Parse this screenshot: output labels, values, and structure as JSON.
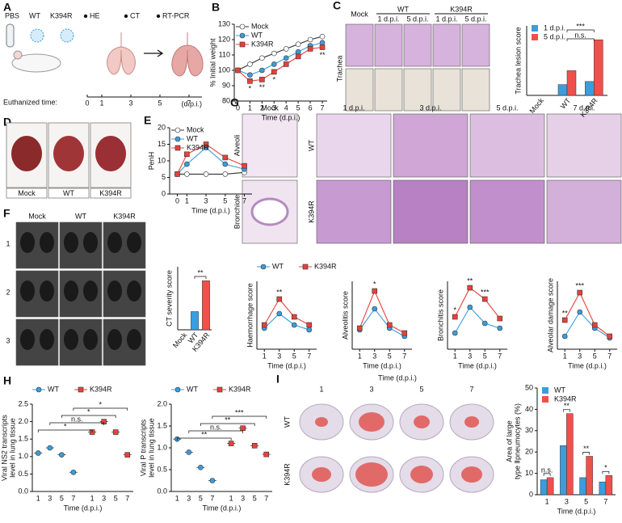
{
  "panel_labels": [
    "A",
    "B",
    "C",
    "D",
    "E",
    "F",
    "G",
    "H",
    "I"
  ],
  "panel_a": {
    "groups": [
      "PBS",
      "WT",
      "K394R"
    ],
    "assays": [
      "HE",
      "CT",
      "RT-PCR"
    ],
    "timeline_label": "Euthanized time:",
    "timeline": [
      0,
      1,
      3,
      5,
      7
    ],
    "timeline_unit": "(d.p.i.)"
  },
  "panel_c_images": {
    "columns": [
      "Mock",
      "WT",
      "K394R"
    ],
    "subcolumns": [
      "1 d.p.i.",
      "5 d.p.i.",
      "1 d.p.i.",
      "5 d.p.i."
    ],
    "row_label": "Trachea"
  },
  "panel_d_images": {
    "labels": [
      "Mock",
      "WT",
      "K394R"
    ]
  },
  "panel_f_images": {
    "columns": [
      "Mock",
      "WT",
      "K394R"
    ],
    "rows": [
      "1",
      "2",
      "3"
    ]
  },
  "panel_g_images": {
    "columns": [
      "Mock",
      "1 d.p.i.",
      "3 d.p.i.",
      "5 d.p.i.",
      "7 d.p.i."
    ],
    "rows": [
      "Alveoli",
      "Bronchiole"
    ],
    "groups": [
      "WT",
      "K394R"
    ]
  },
  "panel_i_images": {
    "title": "Time (d.p.i.)",
    "columns": [
      "1",
      "3",
      "5",
      "7"
    ],
    "rows": [
      "WT",
      "K394R"
    ]
  },
  "chart_data": [
    {
      "type": "line",
      "y_label": "% Initial weight",
      "x_label": "Time (d.p.i.)",
      "x": [
        0,
        1,
        2,
        3,
        4,
        5,
        6,
        7
      ],
      "xlim": [
        -0.3,
        7.4
      ],
      "xticks": [
        0,
        1,
        2,
        3,
        4,
        5,
        6,
        7
      ],
      "ylim": [
        80,
        130
      ],
      "yticks": [
        80,
        90,
        100,
        110,
        120,
        130
      ],
      "legend": "upper left",
      "series": [
        {
          "name": "Mock",
          "color": "#ffffff",
          "line_color": "#333333",
          "marker": "circle",
          "values": [
            100,
            104,
            108,
            111,
            114,
            117,
            120,
            122
          ]
        },
        {
          "name": "WT",
          "color": "#3b9ddd",
          "marker": "circle",
          "values": [
            100,
            97,
            100,
            104,
            108,
            112,
            116,
            118
          ]
        },
        {
          "name": "K394R",
          "color": "#e8413b",
          "marker": "square",
          "values": [
            100,
            93,
            94,
            99,
            104,
            109,
            114,
            115
          ]
        }
      ],
      "annotations": [
        {
          "x": 1,
          "text": "*"
        },
        {
          "x": 2,
          "text": "**"
        },
        {
          "x": 3,
          "text": "*"
        },
        {
          "x": 7,
          "text": "**"
        }
      ]
    },
    {
      "type": "bar",
      "y_label": "Trachea lesion score",
      "categories": [
        "Mock",
        "WT",
        "K394R"
      ],
      "ylim": [
        0,
        4.5
      ],
      "legend": "upper left",
      "series": [
        {
          "name": "1 d.p.i.",
          "color": "#3b9ddd",
          "values": [
            0,
            0.7,
            0.9
          ]
        },
        {
          "name": "5 d.p.i.",
          "color": "#f0504a",
          "values": [
            0,
            1.6,
            3.6
          ]
        }
      ],
      "annotations": [
        {
          "from": 1,
          "to": 2,
          "text": "n.s."
        },
        {
          "from": 1,
          "to": 2,
          "text": "***"
        }
      ]
    },
    {
      "type": "line",
      "y_label": "PenH",
      "x_label": "Time (d.p.i.)",
      "x": [
        0,
        1,
        3,
        5,
        7
      ],
      "xlim": [
        -0.8,
        7.8
      ],
      "xticks": [
        0,
        1,
        3,
        5,
        7
      ],
      "ylim": [
        0,
        20
      ],
      "yticks": [
        0,
        5,
        10,
        15,
        20
      ],
      "legend": "upper left",
      "series": [
        {
          "name": "Mock",
          "color": "#ffffff",
          "line_color": "#333333",
          "marker": "circle",
          "values": [
            6,
            6,
            6,
            6,
            6.5
          ]
        },
        {
          "name": "WT",
          "color": "#3b9ddd",
          "marker": "circle",
          "values": [
            6,
            9,
            14,
            9,
            7.5
          ]
        },
        {
          "name": "K394R",
          "color": "#e8413b",
          "marker": "square",
          "values": [
            6,
            12,
            15,
            11,
            8.5
          ]
        }
      ]
    },
    {
      "type": "bar",
      "y_label": "CT severity score",
      "categories": [
        "Mock",
        "WT",
        "K394R"
      ],
      "values": [
        0,
        1.3,
        3.5
      ],
      "colors": [
        "#ffffff",
        "#3b9ddd",
        "#f0504a"
      ],
      "ylim": [
        0,
        4.5
      ],
      "annotations": [
        {
          "from": 1,
          "to": 2,
          "text": "**"
        }
      ]
    },
    {
      "type": "line",
      "y_label": "Haemorrhage score",
      "x_label": "Time (d.p.i.)",
      "x": [
        1,
        3,
        5,
        7
      ],
      "xlim": [
        0,
        8
      ],
      "xticks": [
        1,
        3,
        5,
        7
      ],
      "ylim": [
        0,
        4.2
      ],
      "legend": "above",
      "series": [
        {
          "name": "WT",
          "color": "#3b9ddd",
          "marker": "circle",
          "values": [
            1.3,
            2.2,
            1.5,
            1.2
          ]
        },
        {
          "name": "K394R",
          "color": "#e8413b",
          "marker": "square",
          "values": [
            1.5,
            3.1,
            2.0,
            1.5
          ]
        }
      ],
      "annotations": [
        {
          "x": 3,
          "text": "**"
        }
      ]
    },
    {
      "type": "line",
      "y_label": "Alveolitis score",
      "x_label": "Time (d.p.i.)",
      "x": [
        1,
        3,
        5,
        7
      ],
      "xlim": [
        0,
        8
      ],
      "xticks": [
        1,
        3,
        5,
        7
      ],
      "ylim": [
        0,
        4.2
      ],
      "series": [
        {
          "color": "#3b9ddd",
          "marker": "circle",
          "values": [
            1.2,
            2.5,
            1.3,
            0.8
          ]
        },
        {
          "color": "#e8413b",
          "marker": "square",
          "values": [
            1.3,
            3.6,
            1.5,
            1.0
          ]
        }
      ],
      "annotations": [
        {
          "x": 3,
          "text": "*"
        }
      ]
    },
    {
      "type": "line",
      "y_label": "Bronchitis score",
      "x_label": "Time (d.p.i.)",
      "x": [
        1,
        3,
        5,
        7
      ],
      "xlim": [
        0,
        8
      ],
      "xticks": [
        1,
        3,
        5,
        7
      ],
      "ylim": [
        0,
        4.2
      ],
      "series": [
        {
          "color": "#3b9ddd",
          "marker": "circle",
          "values": [
            1.0,
            2.6,
            1.6,
            1.3
          ]
        },
        {
          "color": "#e8413b",
          "marker": "square",
          "values": [
            2.0,
            3.8,
            3.1,
            1.9
          ]
        }
      ],
      "annotations": [
        {
          "x": 1,
          "text": "*"
        },
        {
          "x": 3,
          "text": "**"
        },
        {
          "x": 5,
          "text": "***"
        }
      ]
    },
    {
      "type": "line",
      "y_label": "Alveolar damage score",
      "x_label": "Time (d.p.i.)",
      "x": [
        1,
        3,
        5,
        7
      ],
      "xlim": [
        0,
        8
      ],
      "xticks": [
        1,
        3,
        5,
        7
      ],
      "ylim": [
        0,
        4.2
      ],
      "series": [
        {
          "color": "#3b9ddd",
          "marker": "circle",
          "values": [
            0.8,
            2.3,
            1.3,
            0.7
          ]
        },
        {
          "color": "#e8413b",
          "marker": "square",
          "values": [
            1.8,
            3.5,
            1.5,
            0.8
          ]
        }
      ],
      "annotations": [
        {
          "x": 1,
          "text": "**"
        },
        {
          "x": 3,
          "text": "***"
        }
      ]
    },
    {
      "type": "strip",
      "y_label": [
        "Viral NS2 transcripts",
        "level in lung tissue"
      ],
      "x_label": "Time (d.p.i.)",
      "categories": [
        "1",
        "3",
        "5",
        "7"
      ],
      "ylim": [
        0,
        2.5
      ],
      "yticks": [
        {
          "value": 0,
          "label": "0.0"
        },
        0.5,
        {
          "value": 1,
          "label": "1.0"
        },
        1.5,
        {
          "value": 2,
          "label": "2.0"
        },
        2.5
      ],
      "legend": "above",
      "series": [
        {
          "name": "WT",
          "color": "#3b9ddd",
          "marker": "circle",
          "values": [
            1.1,
            1.25,
            1.05,
            0.55
          ]
        },
        {
          "name": "K394R",
          "color": "#e8413b",
          "marker": "square",
          "values": [
            1.7,
            2.0,
            1.7,
            1.05
          ]
        }
      ],
      "annotations": [
        {
          "from": 0,
          "to": 4,
          "text": "*"
        },
        {
          "from": 1,
          "to": 5,
          "text": "n.s."
        },
        {
          "from": 2,
          "to": 6,
          "text": "*"
        },
        {
          "from": 3,
          "to": 7,
          "text": "*"
        }
      ]
    },
    {
      "type": "strip",
      "y_label": [
        "Viral P transcripts",
        "level in lung tissue"
      ],
      "x_label": "Time (d.p.i.)",
      "categories": [
        "1",
        "3",
        "5",
        "7"
      ],
      "ylim": [
        0,
        2
      ],
      "yticks": [
        {
          "value": 0,
          "label": "0.0"
        },
        0.5,
        {
          "value": 1,
          "label": "1.0"
        },
        1.5,
        {
          "value": 2,
          "label": "2.0"
        }
      ],
      "legend": "above",
      "series": [
        {
          "name": "WT",
          "color": "#3b9ddd",
          "marker": "circle",
          "values": [
            1.2,
            0.9,
            0.55,
            0.25
          ]
        },
        {
          "name": "K394R",
          "color": "#e8413b",
          "marker": "square",
          "values": [
            1.1,
            1.45,
            1.05,
            0.85
          ]
        }
      ],
      "annotations": [
        {
          "from": 0,
          "to": 4,
          "text": "**"
        },
        {
          "from": 1,
          "to": 5,
          "text": "n.s."
        },
        {
          "from": 2,
          "to": 6,
          "text": "**"
        },
        {
          "from": 3,
          "to": 7,
          "text": "***"
        }
      ]
    },
    {
      "type": "bar",
      "y_label": [
        "Area of large",
        "type Ⅱpneumocytes (%)"
      ],
      "x_label": "Time (d.p.i.)",
      "categories": [
        "1",
        "3",
        "5",
        "7"
      ],
      "ylim": [
        0,
        50
      ],
      "yticks": [
        0,
        10,
        20,
        30,
        40,
        50
      ],
      "legend": "upper left",
      "series": [
        {
          "name": "WT",
          "color": "#3b9ddd",
          "values": [
            7,
            23,
            8,
            6
          ]
        },
        {
          "name": "K394R",
          "color": "#f0504a",
          "values": [
            8,
            38,
            18,
            9
          ]
        }
      ],
      "annotations": [
        {
          "x": 0,
          "text": "n.s."
        },
        {
          "x": 1,
          "text": "**"
        },
        {
          "x": 2,
          "text": "**"
        },
        {
          "x": 3,
          "text": "*"
        }
      ]
    }
  ]
}
